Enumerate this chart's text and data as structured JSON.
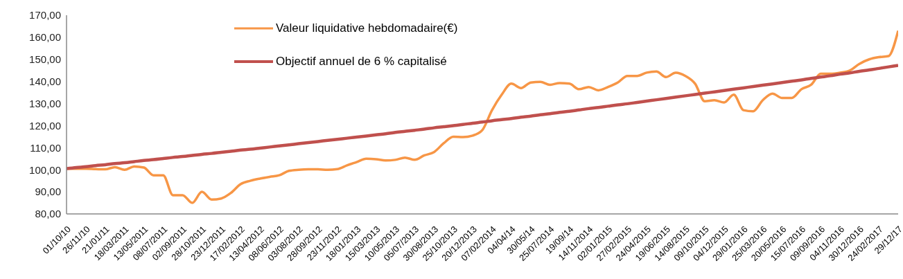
{
  "chart_data": {
    "type": "line",
    "categories": [
      "01/10/10",
      null,
      "26/11/10",
      null,
      "21/01/11",
      null,
      "18/03/2011",
      null,
      "13/05/2011",
      null,
      "08/07/2011",
      null,
      "02/09/2011",
      null,
      "28/10/2011",
      null,
      "23/12/2011",
      null,
      "17/02/2012",
      null,
      "13/04/2012",
      null,
      "08/06/2012",
      null,
      "03/08/2012",
      null,
      "28/09/2012",
      null,
      "23/11/2012",
      null,
      "18/01/2013",
      null,
      "15/03/2013",
      null,
      "10/05/2013",
      null,
      "05/07/2013",
      null,
      "30/08/2013",
      null,
      "25/10/2013",
      null,
      "20/12/2013",
      null,
      "07/02/2014",
      null,
      "04/04/14",
      null,
      "30/05/14",
      null,
      "25/07/2014",
      null,
      "19/09/14",
      null,
      "14/11/2014",
      null,
      "02/01/2015",
      null,
      "27/02/2015",
      null,
      "24/04/2015",
      null,
      "19/06/2015",
      null,
      "14/08/2015",
      null,
      "09/10/2015",
      null,
      "04/12/2015",
      null,
      "29/01/2016",
      null,
      "25/03/2016",
      null,
      "20/05/2016",
      null,
      "15/07/2016",
      null,
      "09/09/2016",
      null,
      "04/11/2016",
      null,
      "30/12/2016",
      null,
      "24/02/2017",
      null,
      "29/12/17"
    ],
    "series": [
      {
        "name": "Valeur liquidative hebdomadaire(€)",
        "color": "#f79646",
        "values": [
          100.5,
          100.5,
          100.5,
          100.3,
          100.2,
          101.2,
          100.0,
          101.5,
          101.0,
          97.5,
          97.5,
          88.5,
          88.5,
          85.0,
          90.0,
          86.5,
          87.0,
          89.5,
          93.5,
          95.0,
          96.0,
          96.8,
          97.5,
          99.5,
          100.0,
          100.2,
          100.2,
          100.0,
          100.3,
          102.0,
          103.5,
          105.0,
          104.8,
          104.2,
          104.5,
          105.5,
          104.5,
          106.5,
          108.0,
          112.0,
          115.0,
          114.8,
          115.5,
          118.0,
          127.0,
          134.0,
          139.0,
          137.0,
          139.5,
          139.8,
          138.5,
          139.3,
          139.0,
          136.5,
          137.5,
          136.0,
          137.5,
          139.5,
          142.5,
          142.5,
          144.0,
          144.5,
          142.0,
          144.0,
          142.5,
          139.0,
          131.0,
          131.5,
          130.5,
          134.0,
          127.0,
          126.5,
          131.5,
          134.5,
          132.5,
          132.5,
          136.5,
          138.5,
          143.5,
          143.5,
          144.0,
          145.0,
          148.0,
          150.0,
          151.0,
          151.5,
          163.0
        ]
      },
      {
        "name": "Objectif annuel de 6 % capitalisé",
        "color": "#c0504d",
        "values": [
          100.5,
          101.0,
          101.4,
          101.9,
          102.3,
          102.8,
          103.2,
          103.7,
          104.2,
          104.6,
          105.1,
          105.6,
          106.0,
          106.5,
          107.0,
          107.4,
          107.9,
          108.4,
          108.9,
          109.3,
          109.8,
          110.3,
          110.8,
          111.3,
          111.8,
          112.3,
          112.8,
          113.3,
          113.8,
          114.3,
          114.8,
          115.3,
          115.8,
          116.3,
          116.9,
          117.4,
          117.9,
          118.4,
          119.0,
          119.5,
          120.0,
          120.5,
          121.1,
          121.6,
          122.2,
          122.7,
          123.2,
          123.8,
          124.3,
          124.9,
          125.4,
          126.0,
          126.5,
          127.1,
          127.7,
          128.2,
          128.8,
          129.4,
          129.9,
          130.5,
          131.1,
          131.7,
          132.3,
          132.9,
          133.5,
          134.1,
          134.7,
          135.3,
          135.9,
          136.5,
          137.1,
          137.7,
          138.3,
          138.9,
          139.5,
          140.1,
          140.7,
          141.4,
          142.0,
          142.6,
          143.3,
          143.9,
          144.6,
          145.2,
          145.9,
          146.6,
          147.3
        ]
      }
    ],
    "ylim": [
      80,
      170
    ],
    "yticks": [
      {
        "value": 80,
        "label": "80,00"
      },
      {
        "value": 90,
        "label": "90,00"
      },
      {
        "value": 100,
        "label": "100,00"
      },
      {
        "value": 110,
        "label": "110,00"
      },
      {
        "value": 120,
        "label": "120,00"
      },
      {
        "value": 130,
        "label": "130,00"
      },
      {
        "value": 140,
        "label": "140,00"
      },
      {
        "value": 150,
        "label": "150,00"
      },
      {
        "value": 160,
        "label": "160,00"
      },
      {
        "value": 170,
        "label": "170,00"
      }
    ],
    "legend": "top",
    "marker": "none",
    "line_style": "solid"
  }
}
